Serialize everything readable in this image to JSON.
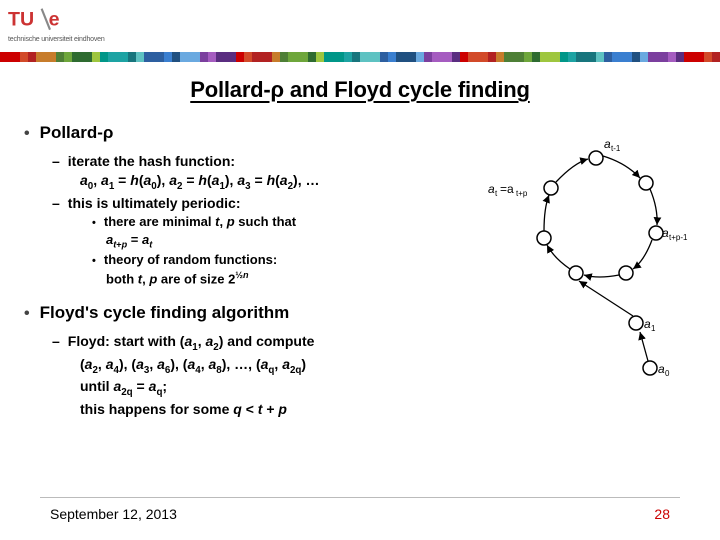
{
  "header": {
    "logo_subtitle": "technische universiteit eindhoven",
    "stripe_colors": [
      "#cc0000",
      "#d24a29",
      "#b22222",
      "#c77c2b",
      "#4e7f36",
      "#6ea63b",
      "#2e6b30",
      "#9ec63f",
      "#009688",
      "#1da3a3",
      "#18757d",
      "#5ec2c2",
      "#2d5fa0",
      "#3a7fd0",
      "#205080",
      "#6aa9e0",
      "#7b3f9e",
      "#a55cc0",
      "#5a2d80"
    ],
    "logo_color": "#cc3333",
    "logo_gray": "#888888"
  },
  "title": "Pollard-ρ and Floyd cycle finding",
  "section1": {
    "heading": "Pollard-ρ",
    "l2_a": "iterate the hash function:",
    "l2_a_line2_html": "<span class='it'>a</span><sub>0</sub>, <span class='it'>a</span><sub>1</sub> = <span class='it'>h</span>(<span class='it'>a</span><sub>0</sub>), <span class='it'>a</span><sub>2</sub> = <span class='it'>h</span>(<span class='it'>a</span><sub>1</sub>), <span class='it'>a</span><sub>3</sub> = <span class='it'>h</span>(<span class='it'>a</span><sub>2</sub>), …",
    "l2_b": "this is ultimately periodic:",
    "l3_a_html": "there are minimal <span class='it'>t</span>, <span class='it'>p</span> such that",
    "l3_a_line2_html": "<span class='it'>a</span><sub><span class='it'>t</span>+<span class='it'>p</span></sub> = <span class='it'>a</span><sub><span class='it'>t</span></sub>",
    "l3_b": "theory of random functions:",
    "l3_b_line2_html": "both <span class='it'>t</span>, <span class='it'>p</span> are of size 2<sup>½<span class='it'>n</span></sup>"
  },
  "section2": {
    "heading": "Floyd's cycle finding algorithm",
    "l2_a_html": "Floyd: start with (<span class='it'>a</span><sub>1</sub>, <span class='it'>a</span><sub>2</sub>) and compute",
    "l2_a_line2_html": "(<span class='it'>a</span><sub>2</sub>, <span class='it'>a</span><sub>4</sub>), (<span class='it'>a</span><sub>3</sub>, <span class='it'>a</span><sub>6</sub>), (<span class='it'>a</span><sub>4</sub>, <span class='it'>a</span><sub>8</sub>), …, (<span class='it'>a</span><sub>q</sub>, <span class='it'>a</span><sub>2q</sub>)",
    "l2_a_line3_html": "until <span class='it'>a</span><sub>2q</sub> = <span class='it'>a</span><sub>q</sub>;",
    "l2_a_line4_html": "this happens for some <span class='it'>q</span> &lt; <span class='it'>t</span> + <span class='it'>p</span>"
  },
  "diagram": {
    "label_top": "a",
    "label_top_sub": "t-1",
    "label_left": "a",
    "label_left_sub1": "t",
    "label_left_text": "=a",
    "label_left_sub2": "t+p",
    "label_right": "a",
    "label_right_sub": "t+p-1",
    "label_a1": "a",
    "label_a1_sub": "1",
    "label_a0": "a",
    "label_a0_sub": "0",
    "node_fill": "#ffffff",
    "node_stroke": "#000000",
    "arrow_color": "#000000"
  },
  "footer": {
    "date": "September 12, 2013",
    "page": "28"
  }
}
